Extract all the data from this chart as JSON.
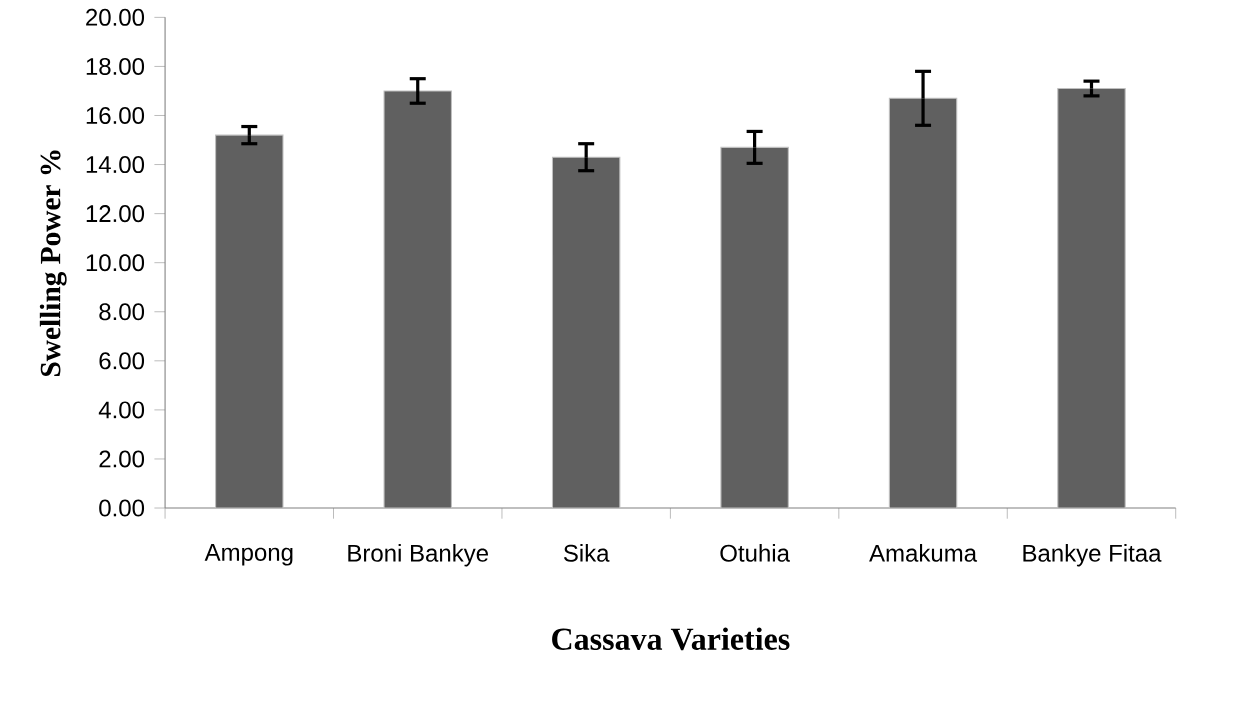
{
  "chart_data": {
    "type": "bar",
    "xlabel": "Cassava Varieties",
    "ylabel": "Swelling Power %",
    "categories": [
      "Ampong",
      "Broni Bankye",
      "Sika",
      "Otuhia",
      "Amakuma",
      "Bankye Fitaa"
    ],
    "values": [
      15.2,
      17.0,
      14.3,
      14.7,
      16.7,
      17.1
    ],
    "errors": [
      0.35,
      0.5,
      0.55,
      0.65,
      1.1,
      0.3
    ],
    "color": "#606060",
    "ylim": [
      0,
      20
    ],
    "yticks": [
      {
        "value": 0,
        "label": "0.00"
      },
      {
        "value": 2,
        "label": "2.00"
      },
      {
        "value": 4,
        "label": "4.00"
      },
      {
        "value": 6,
        "label": "6.00"
      },
      {
        "value": 8,
        "label": "8.00"
      },
      {
        "value": 10,
        "label": "10.00"
      },
      {
        "value": 12,
        "label": "12.00"
      },
      {
        "value": 14,
        "label": "14.00"
      },
      {
        "value": 16,
        "label": "16.00"
      },
      {
        "value": 18,
        "label": "18.00"
      },
      {
        "value": 20,
        "label": "20.00"
      }
    ],
    "grid": false
  }
}
